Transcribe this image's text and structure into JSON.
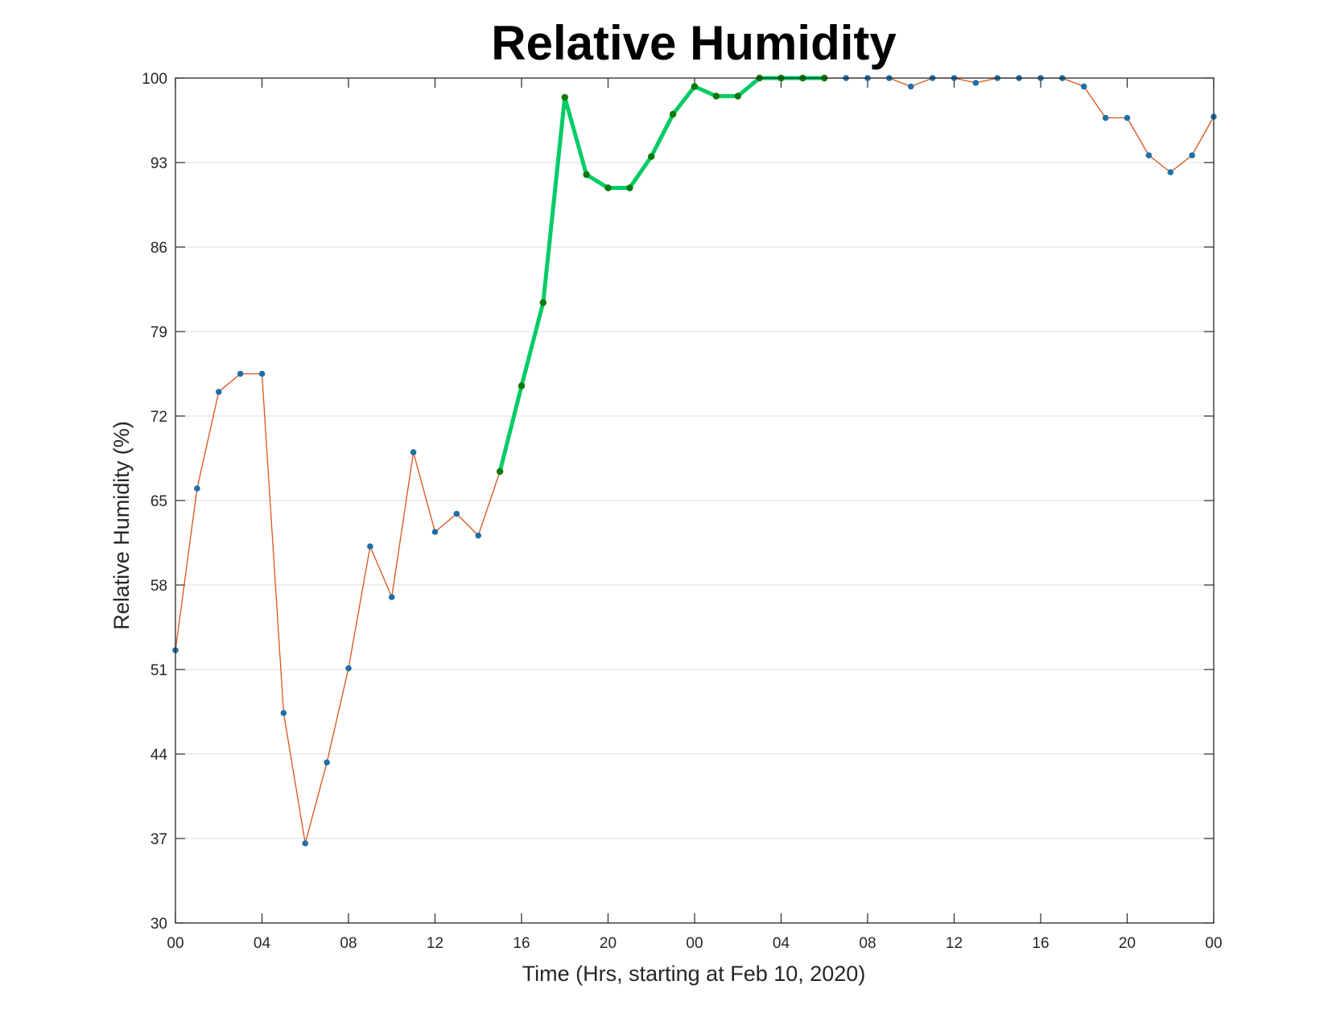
{
  "chart_data": {
    "type": "line",
    "title": "Relative Humidity",
    "xlabel": "Time (Hrs, starting at Feb 10, 2020)",
    "ylabel": "Relative Humidity (%)",
    "ylim": [
      30,
      100
    ],
    "xlim": [
      0,
      48
    ],
    "yticks": [
      30,
      37,
      44,
      51,
      58,
      65,
      72,
      79,
      86,
      93,
      100
    ],
    "xticks": [
      {
        "x": 0,
        "label": "00"
      },
      {
        "x": 4,
        "label": "04"
      },
      {
        "x": 8,
        "label": "08"
      },
      {
        "x": 12,
        "label": "12"
      },
      {
        "x": 16,
        "label": "16"
      },
      {
        "x": 20,
        "label": "20"
      },
      {
        "x": 24,
        "label": "00"
      },
      {
        "x": 28,
        "label": "04"
      },
      {
        "x": 32,
        "label": "08"
      },
      {
        "x": 36,
        "label": "12"
      },
      {
        "x": 40,
        "label": "16"
      },
      {
        "x": 44,
        "label": "20"
      },
      {
        "x": 48,
        "label": "00"
      }
    ],
    "grid": "horizontal",
    "series": [
      {
        "x": [
          0,
          1,
          2,
          3,
          4,
          5,
          6,
          7,
          8,
          9,
          10,
          11,
          12,
          13,
          14,
          15,
          16,
          17,
          18,
          19,
          20,
          21,
          22,
          23,
          24,
          25,
          26,
          27,
          28,
          29,
          30,
          31,
          32,
          33,
          34,
          35,
          36,
          37,
          38,
          39,
          40,
          41,
          42,
          43,
          44,
          45,
          46,
          47,
          48
        ],
        "values": [
          52.6,
          66,
          74,
          75.5,
          75.5,
          47.4,
          36.6,
          43.3,
          51.1,
          61.2,
          57,
          69,
          62.4,
          63.9,
          62.1,
          67.4,
          74.5,
          81.4,
          98.4,
          92,
          90.9,
          90.9,
          93.5,
          97,
          99.3,
          98.5,
          98.5,
          100,
          100,
          100,
          100,
          100,
          100,
          100,
          99.3,
          100,
          100,
          99.6,
          100,
          100,
          100,
          100,
          99.3,
          96.7,
          96.7,
          93.6,
          92.2,
          93.6,
          96.8
        ],
        "color": "#d95319",
        "marker_color": "#1f6fa8"
      },
      {
        "x": [
          15,
          16,
          17,
          18,
          19,
          20,
          21,
          22,
          23,
          24,
          25,
          26,
          27,
          28,
          29,
          30
        ],
        "values": [
          67.4,
          74.5,
          81.4,
          98.4,
          92,
          90.9,
          90.9,
          93.5,
          97,
          99.3,
          98.5,
          98.5,
          100,
          100,
          100,
          100
        ],
        "color": "#00cc66",
        "marker_color": "#0a7a0a"
      }
    ]
  }
}
